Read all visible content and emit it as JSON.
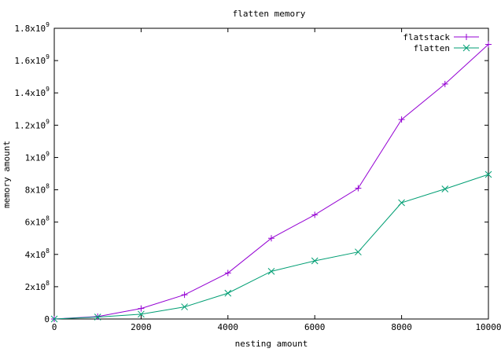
{
  "chart_data": {
    "type": "line",
    "title": "flatten memory",
    "xlabel": "nesting amount",
    "ylabel": "memory amount",
    "xlim": [
      0,
      10000
    ],
    "ylim": [
      0,
      1800000000
    ],
    "grid": false,
    "legend_position": "top-right",
    "x_ticks": [
      {
        "value": 0,
        "label": "0"
      },
      {
        "value": 2000,
        "label": "2000"
      },
      {
        "value": 4000,
        "label": "4000"
      },
      {
        "value": 6000,
        "label": "6000"
      },
      {
        "value": 8000,
        "label": "8000"
      },
      {
        "value": 10000,
        "label": "10000"
      }
    ],
    "y_ticks": [
      {
        "value": 0,
        "mantissa": "0",
        "exp": ""
      },
      {
        "value": 200000000,
        "mantissa": "2x10",
        "exp": "8"
      },
      {
        "value": 400000000,
        "mantissa": "4x10",
        "exp": "8"
      },
      {
        "value": 600000000,
        "mantissa": "6x10",
        "exp": "8"
      },
      {
        "value": 800000000,
        "mantissa": "8x10",
        "exp": "8"
      },
      {
        "value": 1000000000,
        "mantissa": "1x10",
        "exp": "9"
      },
      {
        "value": 1200000000,
        "mantissa": "1.2x10",
        "exp": "9"
      },
      {
        "value": 1400000000,
        "mantissa": "1.4x10",
        "exp": "9"
      },
      {
        "value": 1600000000,
        "mantissa": "1.6x10",
        "exp": "9"
      },
      {
        "value": 1800000000,
        "mantissa": "1.8x10",
        "exp": "9"
      }
    ],
    "x": [
      0,
      1000,
      2000,
      3000,
      4000,
      5000,
      6000,
      7000,
      8000,
      9000,
      10000
    ],
    "series": [
      {
        "name": "flatstack",
        "color": "#9400d3",
        "marker": "plus",
        "values": [
          0,
          15000000,
          65000000,
          150000000,
          285000000,
          500000000,
          645000000,
          810000000,
          1235000000,
          1455000000,
          1700000000
        ]
      },
      {
        "name": "flatten",
        "color": "#009e73",
        "marker": "cross",
        "values": [
          0,
          12000000,
          30000000,
          75000000,
          160000000,
          295000000,
          360000000,
          415000000,
          720000000,
          805000000,
          895000000
        ]
      }
    ]
  }
}
